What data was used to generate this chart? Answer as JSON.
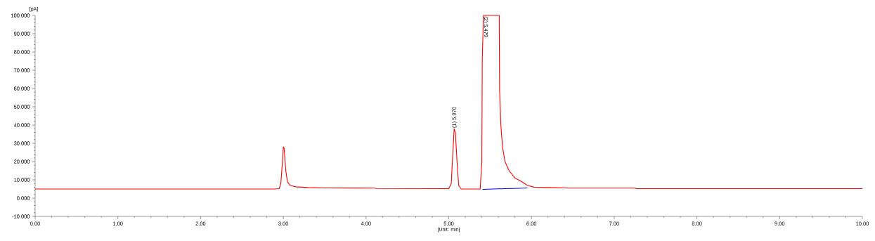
{
  "chart_data": {
    "type": "line",
    "xlabel": "[Unit: min]",
    "ylabel": "[pA]",
    "x": [
      0,
      2.9,
      2.95,
      2.97,
      2.99,
      3.0,
      3.01,
      3.03,
      3.05,
      3.08,
      3.15,
      3.3,
      3.5,
      4.1,
      4.12,
      5.0,
      5.03,
      5.05,
      5.065,
      5.08,
      5.1,
      5.12,
      5.15,
      5.38,
      5.4,
      5.405,
      5.42,
      5.61,
      5.615,
      5.63,
      5.65,
      5.68,
      5.73,
      5.8,
      5.86,
      5.95,
      6.03,
      6.2,
      6.4,
      6.45,
      7.25,
      7.27,
      10
    ],
    "series": [
      {
        "color": "#ff0000",
        "values": [
          5.0,
          5.0,
          5.2,
          8,
          20,
          28,
          27.5,
          15,
          9,
          7,
          6.2,
          5.8,
          5.6,
          5.5,
          5.3,
          5.2,
          8,
          25,
          38,
          36,
          20,
          7,
          5.0,
          5.0,
          20,
          76,
          100,
          100,
          59,
          40,
          28,
          20,
          15,
          11,
          9.6,
          7,
          6,
          5.8,
          5.7,
          5.5,
          5.5,
          5.2,
          5.2
        ]
      },
      {
        "color": "#0000ff",
        "x": [
          5.41,
          5.6,
          5.85,
          5.95
        ],
        "values": [
          4.8,
          5.1,
          5.4,
          5.6
        ]
      }
    ],
    "xlim": [
      0,
      10
    ],
    "ylim": [
      -10,
      100
    ],
    "xticks": [
      {
        "value": 0,
        "label": "0.00"
      },
      {
        "value": 1,
        "label": "1.00"
      },
      {
        "value": 2,
        "label": "2.00"
      },
      {
        "value": 3,
        "label": "3.00"
      },
      {
        "value": 4,
        "label": "4.00"
      },
      {
        "value": 5,
        "label": "5.00"
      },
      {
        "value": 6,
        "label": "6.00"
      },
      {
        "value": 7,
        "label": "7.00"
      },
      {
        "value": 8,
        "label": "8.00"
      },
      {
        "value": 9,
        "label": "9.00"
      },
      {
        "value": 10,
        "label": "10.00"
      }
    ],
    "yticks": [
      {
        "value": -10,
        "label": "-10.000"
      },
      {
        "value": 0,
        "label": "0.000"
      },
      {
        "value": 10,
        "label": "10.000"
      },
      {
        "value": 20,
        "label": "20.000"
      },
      {
        "value": 30,
        "label": "30.000"
      },
      {
        "value": 40,
        "label": "40.000"
      },
      {
        "value": 50,
        "label": "50.000"
      },
      {
        "value": 60,
        "label": "60.000"
      },
      {
        "value": 70,
        "label": "70.000"
      },
      {
        "value": 80,
        "label": "80.000"
      },
      {
        "value": 90,
        "label": "90.000"
      },
      {
        "value": 100,
        "label": "100.000"
      }
    ],
    "annotations": [
      {
        "text": "(1) 5.070",
        "x": 5.07,
        "y": 38
      },
      {
        "text": "(2) 5.479",
        "x": 5.479,
        "y": 100
      }
    ],
    "grid": false,
    "marker": "none",
    "line_style": "solid"
  }
}
